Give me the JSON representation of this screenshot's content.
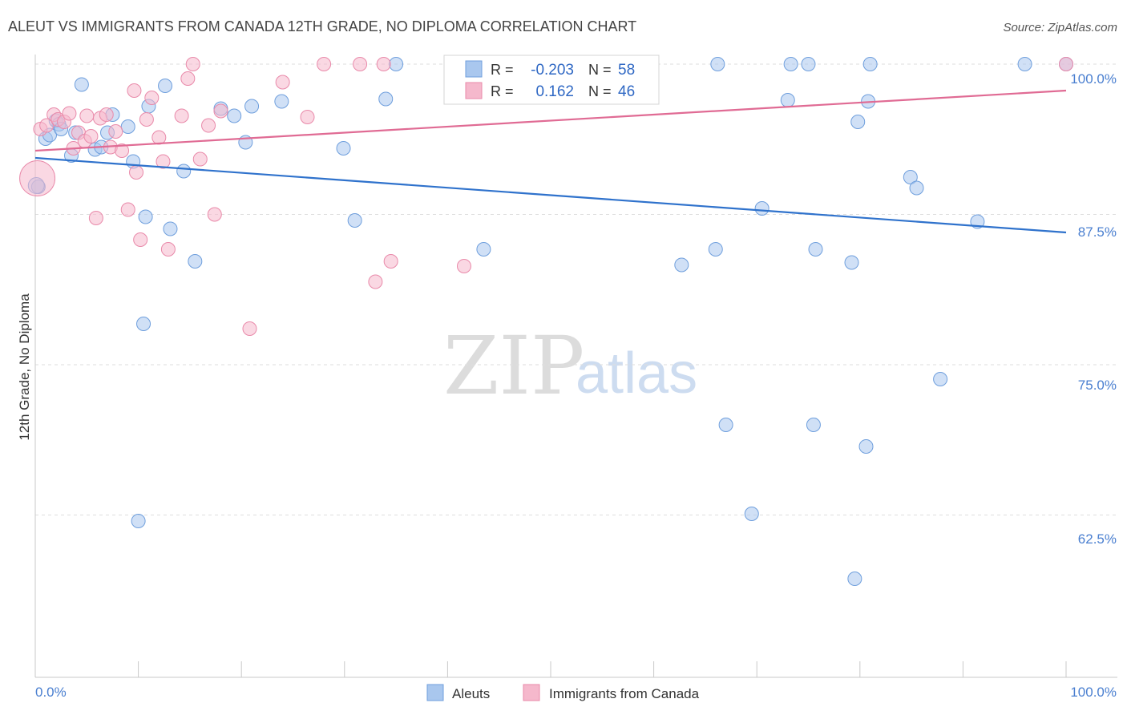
{
  "chart_data": {
    "type": "scatter",
    "title": "ALEUT VS IMMIGRANTS FROM CANADA 12TH GRADE, NO DIPLOMA CORRELATION CHART",
    "source": "Source: ZipAtlas.com",
    "xlabel": "",
    "ylabel": "12th Grade, No Diploma",
    "xlim": [
      0,
      100
    ],
    "ylim": [
      49,
      101
    ],
    "x_tick_labels": [
      "0.0%",
      "100.0%"
    ],
    "y_ticks": [
      {
        "value": 100,
        "label": "100.0%"
      },
      {
        "value": 87.5,
        "label": "87.5%"
      },
      {
        "value": 75,
        "label": "75.0%"
      },
      {
        "value": 62.5,
        "label": "62.5%"
      }
    ],
    "watermark": {
      "zip": "ZIP",
      "atlas": "atlas"
    },
    "stats": [
      {
        "r_label": "R =",
        "r_value": "-0.203",
        "n_label": "N =",
        "n_value": "58"
      },
      {
        "r_label": "R =",
        "r_value": "0.162",
        "n_label": "N =",
        "n_value": "46"
      }
    ],
    "series": [
      {
        "name": "Aleuts",
        "fill": "#a9c7ee",
        "stroke": "#6f9fdd",
        "line_color": "#2f72cc",
        "trend": {
          "x": [
            0,
            100
          ],
          "y": [
            92.2,
            86.0
          ]
        },
        "points": [
          [
            0.3,
            89.8
          ],
          [
            1.0,
            93.8
          ],
          [
            1.4,
            94.1
          ],
          [
            2.0,
            95.3
          ],
          [
            2.3,
            95.0
          ],
          [
            2.5,
            94.6
          ],
          [
            3.5,
            92.4
          ],
          [
            3.9,
            94.3
          ],
          [
            4.5,
            98.3
          ],
          [
            5.8,
            92.9
          ],
          [
            6.4,
            93.1
          ],
          [
            7.0,
            94.3
          ],
          [
            7.5,
            95.8
          ],
          [
            9.0,
            94.8
          ],
          [
            9.5,
            91.9
          ],
          [
            10.5,
            78.4
          ],
          [
            10.7,
            87.3
          ],
          [
            11.0,
            96.5
          ],
          [
            12.6,
            98.2
          ],
          [
            13.1,
            86.3
          ],
          [
            14.4,
            91.1
          ],
          [
            15.5,
            83.6
          ],
          [
            18.0,
            96.3
          ],
          [
            19.3,
            95.7
          ],
          [
            20.4,
            93.5
          ],
          [
            21.0,
            96.5
          ],
          [
            23.9,
            96.9
          ],
          [
            10.0,
            62.0
          ],
          [
            29.9,
            93.0
          ],
          [
            31.0,
            87.0
          ],
          [
            34.0,
            97.1
          ],
          [
            35.0,
            100.0
          ],
          [
            43.5,
            84.6
          ],
          [
            53.0,
            100.0
          ],
          [
            62.7,
            83.3
          ],
          [
            66.0,
            84.6
          ],
          [
            66.2,
            100.0
          ],
          [
            67.0,
            70.0
          ],
          [
            69.5,
            62.6
          ],
          [
            70.5,
            88.0
          ],
          [
            73.0,
            97.0
          ],
          [
            73.3,
            100.0
          ],
          [
            75.0,
            100.0
          ],
          [
            75.5,
            70.0
          ],
          [
            75.7,
            84.6
          ],
          [
            79.2,
            83.5
          ],
          [
            79.5,
            57.2
          ],
          [
            79.8,
            95.2
          ],
          [
            80.8,
            96.9
          ],
          [
            80.6,
            68.2
          ],
          [
            81.0,
            100.0
          ],
          [
            84.9,
            90.6
          ],
          [
            85.5,
            89.7
          ],
          [
            87.8,
            73.8
          ],
          [
            91.4,
            86.9
          ],
          [
            96.0,
            100.0
          ],
          [
            100.0,
            100.0
          ],
          [
            0.1,
            89.9
          ]
        ]
      },
      {
        "name": "Immigrants from Canada",
        "fill": "#f5b8cc",
        "stroke": "#e98aaa",
        "line_color": "#e06b94",
        "trend": {
          "x": [
            0,
            100
          ],
          "y": [
            92.8,
            97.8
          ]
        },
        "points": [
          [
            0.5,
            94.6
          ],
          [
            1.1,
            94.9
          ],
          [
            1.8,
            95.8
          ],
          [
            2.2,
            95.4
          ],
          [
            2.8,
            95.2
          ],
          [
            3.3,
            95.9
          ],
          [
            3.7,
            93.0
          ],
          [
            4.2,
            94.3
          ],
          [
            4.8,
            93.6
          ],
          [
            5.0,
            95.7
          ],
          [
            5.4,
            94.0
          ],
          [
            5.9,
            87.2
          ],
          [
            6.3,
            95.5
          ],
          [
            6.9,
            95.8
          ],
          [
            7.3,
            93.1
          ],
          [
            7.8,
            94.4
          ],
          [
            8.4,
            92.8
          ],
          [
            9.0,
            87.9
          ],
          [
            9.6,
            97.8
          ],
          [
            9.8,
            91.0
          ],
          [
            10.2,
            85.4
          ],
          [
            10.8,
            95.4
          ],
          [
            11.3,
            97.2
          ],
          [
            12.0,
            93.9
          ],
          [
            12.4,
            91.9
          ],
          [
            12.9,
            84.6
          ],
          [
            14.2,
            95.7
          ],
          [
            14.8,
            98.8
          ],
          [
            15.3,
            100.0
          ],
          [
            16.0,
            92.1
          ],
          [
            16.8,
            94.9
          ],
          [
            17.4,
            87.5
          ],
          [
            18.0,
            96.1
          ],
          [
            20.8,
            78.0
          ],
          [
            24.0,
            98.5
          ],
          [
            26.4,
            95.6
          ],
          [
            28.0,
            100.0
          ],
          [
            31.5,
            100.0
          ],
          [
            33.0,
            81.9
          ],
          [
            33.8,
            100.0
          ],
          [
            34.5,
            83.6
          ],
          [
            41.5,
            100.0
          ],
          [
            41.6,
            83.2
          ],
          [
            47.5,
            100.0
          ],
          [
            100.0,
            100.0
          ],
          [
            0.2,
            90.5
          ]
        ]
      }
    ]
  }
}
